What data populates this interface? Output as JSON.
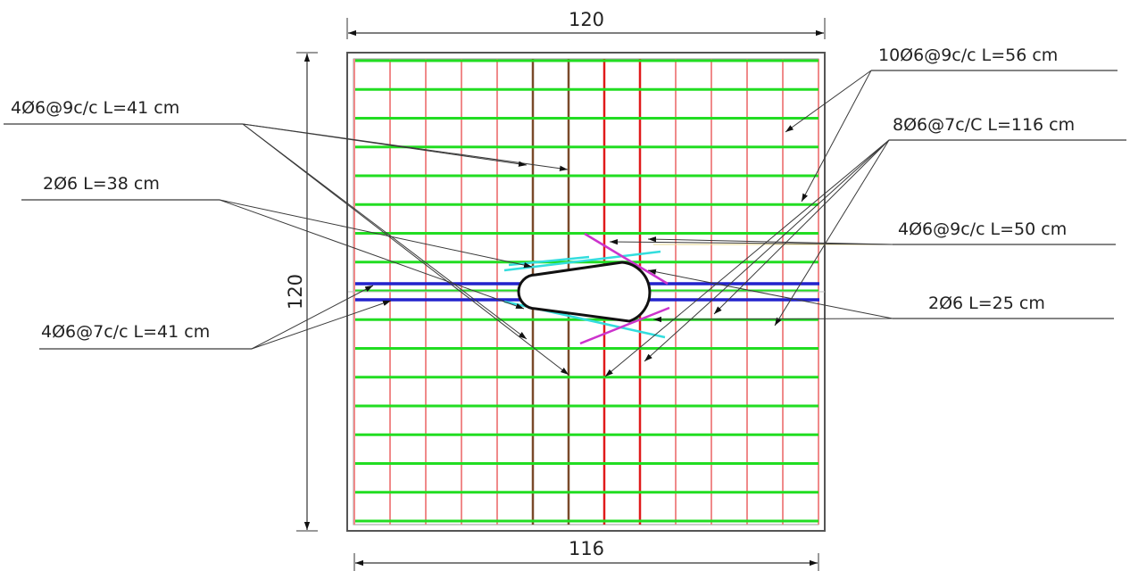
{
  "dimensions": {
    "top_width": "120",
    "side_height": "120",
    "bottom_width": "116"
  },
  "labels": {
    "top_right_1": "10Ø6@9c/c  L=56 cm",
    "top_right_2": "8Ø6@7c/C L=116 cm",
    "mid_right_1": "4Ø6@9c/c L=50 cm",
    "mid_right_2": "2Ø6 L=25 cm",
    "top_left_1": "4Ø6@9c/c L=41 cm",
    "top_left_2": "2Ø6 L=38 cm",
    "bottom_left": "4Ø6@7c/c L=41 cm"
  },
  "colors": {
    "frame": "#555555",
    "horizontal_bars": "#22dd22",
    "vertical_bars": "#f08a8a",
    "accent_vertical_dark": "#7a4a2a",
    "accent_vertical_red": "#e01a1a",
    "band_bars": "#2222cc",
    "diagonal_cyan": "#33dddd",
    "diagonal_magenta": "#cc33cc",
    "guide_line": "#e8d890"
  }
}
